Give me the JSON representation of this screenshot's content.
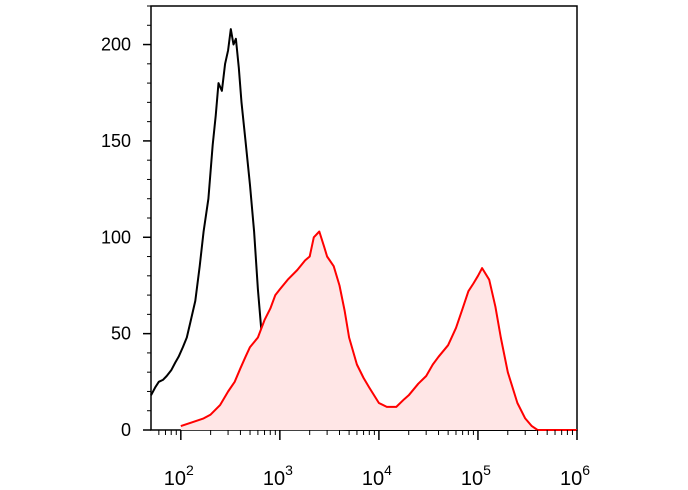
{
  "chart_data": {
    "type": "area",
    "title": "",
    "xlabel": "",
    "ylabel": "",
    "x_scale": "log10",
    "xlim": [
      50,
      1000000
    ],
    "ylim": [
      0,
      220
    ],
    "x_tick_labels": [
      {
        "value": 100,
        "base": "10",
        "exp": "2"
      },
      {
        "value": 1000,
        "base": "10",
        "exp": "3"
      },
      {
        "value": 10000,
        "base": "10",
        "exp": "4"
      },
      {
        "value": 100000,
        "base": "10",
        "exp": "5"
      },
      {
        "value": 1000000,
        "base": "10",
        "exp": "6"
      }
    ],
    "y_tick_labels": [
      {
        "value": 0,
        "label": "0"
      },
      {
        "value": 50,
        "label": "50"
      },
      {
        "value": 100,
        "label": "100"
      },
      {
        "value": 150,
        "label": "150"
      },
      {
        "value": 200,
        "label": "200"
      }
    ],
    "grid": false,
    "legend": "none",
    "series": [
      {
        "color": "#000000",
        "fill": "none",
        "points": [
          [
            50,
            18
          ],
          [
            55,
            22
          ],
          [
            60,
            25
          ],
          [
            66,
            26
          ],
          [
            72,
            28
          ],
          [
            80,
            31
          ],
          [
            88,
            35
          ],
          [
            95,
            38
          ],
          [
            105,
            43
          ],
          [
            115,
            48
          ],
          [
            125,
            56
          ],
          [
            140,
            67
          ],
          [
            155,
            85
          ],
          [
            170,
            103
          ],
          [
            190,
            120
          ],
          [
            210,
            148
          ],
          [
            225,
            163
          ],
          [
            240,
            180
          ],
          [
            260,
            176
          ],
          [
            280,
            190
          ],
          [
            300,
            197
          ],
          [
            320,
            208
          ],
          [
            340,
            200
          ],
          [
            360,
            203
          ],
          [
            385,
            188
          ],
          [
            410,
            170
          ],
          [
            450,
            150
          ],
          [
            500,
            127
          ],
          [
            550,
            103
          ],
          [
            600,
            73
          ],
          [
            650,
            52
          ],
          [
            700,
            33
          ],
          [
            750,
            22
          ],
          [
            800,
            13
          ],
          [
            900,
            8
          ],
          [
            1000,
            5
          ],
          [
            1200,
            3
          ],
          [
            1500,
            2
          ],
          [
            2000,
            1
          ],
          [
            3000,
            0.5
          ],
          [
            5000,
            0
          ],
          [
            1000000,
            0
          ]
        ]
      },
      {
        "color": "#ff0000",
        "fill": "#ffe6e6",
        "points": [
          [
            100,
            2
          ],
          [
            130,
            4
          ],
          [
            170,
            6
          ],
          [
            200,
            8
          ],
          [
            250,
            13
          ],
          [
            300,
            20
          ],
          [
            350,
            25
          ],
          [
            400,
            32
          ],
          [
            450,
            38
          ],
          [
            500,
            43
          ],
          [
            600,
            48
          ],
          [
            700,
            57
          ],
          [
            800,
            63
          ],
          [
            900,
            70
          ],
          [
            1000,
            73
          ],
          [
            1200,
            78
          ],
          [
            1500,
            83
          ],
          [
            1800,
            88
          ],
          [
            2000,
            90
          ],
          [
            2200,
            100
          ],
          [
            2500,
            103
          ],
          [
            2800,
            95
          ],
          [
            3000,
            90
          ],
          [
            3500,
            85
          ],
          [
            4000,
            75
          ],
          [
            4500,
            62
          ],
          [
            5000,
            48
          ],
          [
            6000,
            34
          ],
          [
            7000,
            27
          ],
          [
            8000,
            22
          ],
          [
            10000,
            14
          ],
          [
            12000,
            12
          ],
          [
            15000,
            12
          ],
          [
            18000,
            16
          ],
          [
            20000,
            18
          ],
          [
            25000,
            24
          ],
          [
            30000,
            28
          ],
          [
            35000,
            34
          ],
          [
            40000,
            38
          ],
          [
            50000,
            44
          ],
          [
            60000,
            53
          ],
          [
            70000,
            63
          ],
          [
            80000,
            72
          ],
          [
            90000,
            76
          ],
          [
            100000,
            80
          ],
          [
            110000,
            84
          ],
          [
            130000,
            78
          ],
          [
            150000,
            64
          ],
          [
            170000,
            48
          ],
          [
            200000,
            30
          ],
          [
            250000,
            14
          ],
          [
            300000,
            6
          ],
          [
            350000,
            2
          ],
          [
            400000,
            0
          ],
          [
            1000000,
            0
          ]
        ]
      }
    ]
  }
}
